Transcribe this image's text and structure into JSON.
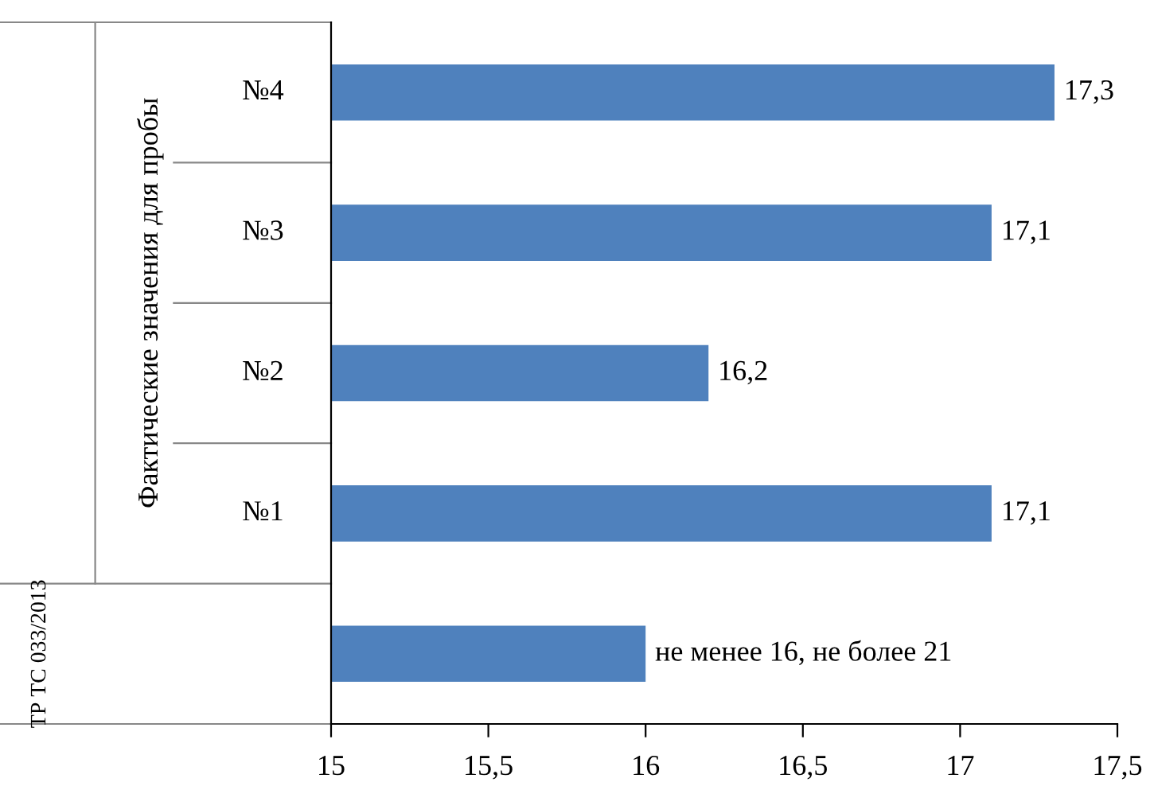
{
  "chart_data": {
    "type": "bar",
    "orientation": "horizontal",
    "categories": [
      "№4",
      "№3",
      "№2",
      "№1",
      null
    ],
    "values": [
      17.3,
      17.1,
      16.2,
      17.1,
      16
    ],
    "value_labels": [
      "17,3",
      "17,1",
      "16,2",
      "17,1",
      "не менее 16, не более 21"
    ],
    "color": "#4f81bd",
    "annotations": [
      "Фактические значения для пробы",
      "ТР ТС 033/2013"
    ],
    "xlim": [
      15,
      17.5
    ],
    "xticks": [
      15,
      {
        "value": 15.5,
        "label": "15,5"
      },
      16,
      {
        "value": 16.5,
        "label": "16,5"
      },
      17,
      {
        "value": 17.5,
        "label": "17,5"
      }
    ],
    "grid": false
  }
}
